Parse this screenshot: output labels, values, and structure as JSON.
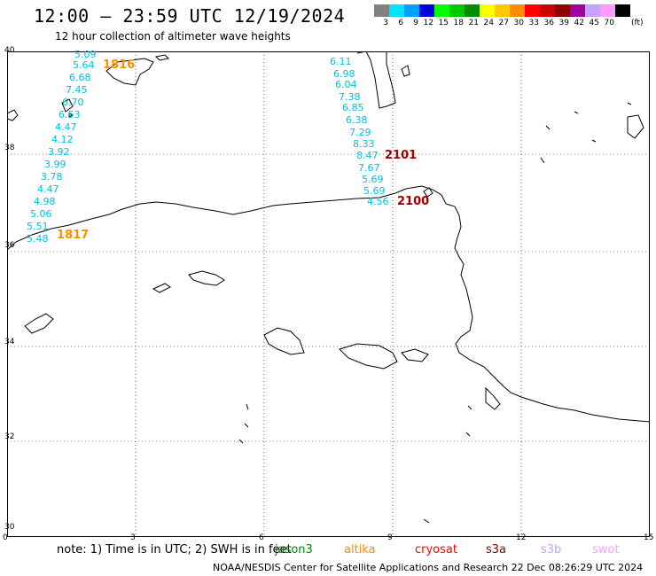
{
  "header": {
    "title": "12:00 – 23:59 UTC 12/19/2024",
    "subtitle": "12 hour collection of altimeter wave heights"
  },
  "color_scale": {
    "unit": "(ft)",
    "bins": [
      {
        "label": "3",
        "color": "#808080"
      },
      {
        "label": "6",
        "color": "#00e5ff"
      },
      {
        "label": "9",
        "color": "#00a0ff"
      },
      {
        "label": "12",
        "color": "#0000e0"
      },
      {
        "label": "15",
        "color": "#00ff00"
      },
      {
        "label": "18",
        "color": "#00c800"
      },
      {
        "label": "21",
        "color": "#008c00"
      },
      {
        "label": "24",
        "color": "#ffff00"
      },
      {
        "label": "27",
        "color": "#ffc800"
      },
      {
        "label": "30",
        "color": "#ff8c00"
      },
      {
        "label": "33",
        "color": "#ff0000"
      },
      {
        "label": "36",
        "color": "#c80000"
      },
      {
        "label": "39",
        "color": "#8c0000"
      },
      {
        "label": "42",
        "color": "#a000a0"
      },
      {
        "label": "45",
        "color": "#c8a0ff"
      },
      {
        "label": "70",
        "color": "#ff9cff"
      },
      {
        "label": "",
        "color": "#000000"
      }
    ]
  },
  "map": {
    "lat_labels": [
      "40",
      "38",
      "36",
      "34",
      "32",
      "30"
    ],
    "lon_labels": [
      "0",
      "3",
      "6",
      "9",
      "12",
      "15"
    ],
    "grid_color": "#000000",
    "coast_color": "#000000"
  },
  "tracks": [
    {
      "color": "#00c0e0",
      "observations": [
        "5.09",
        "5.64",
        "6.68",
        "7.45",
        "6.70",
        "6.53",
        "4.47",
        "4.12",
        "3.92",
        "3.99",
        "3.78",
        "4.47",
        "4.98",
        "5.06",
        "5.51",
        "5.48"
      ]
    },
    {
      "color": "#00c0e0",
      "observations": [
        "6.11",
        "6.98",
        "6.04",
        "7.38",
        "6.85",
        "6.38",
        "7.29",
        "8.33",
        "8.47",
        "7.67",
        "5.69",
        "5.69",
        "4.56"
      ]
    }
  ],
  "pass_labels": [
    {
      "text": "1816",
      "color": "#ff8c00"
    },
    {
      "text": "1817",
      "color": "#ff8c00"
    },
    {
      "text": "2101",
      "color": "#a00000"
    },
    {
      "text": "2100",
      "color": "#a00000"
    }
  ],
  "footer": {
    "note": "note: 1) Time is in UTC; 2) SWH is in feet",
    "satellites": [
      {
        "name": "jason3",
        "color": "#008c00"
      },
      {
        "name": "altika",
        "color": "#ff8c00"
      },
      {
        "name": "cryosat",
        "color": "#ff0000"
      },
      {
        "name": "s3a",
        "color": "#8c0000"
      },
      {
        "name": "s3b",
        "color": "#c8a0ff"
      },
      {
        "name": "swot",
        "color": "#ff9cff"
      }
    ],
    "credit": "NOAA/NESDIS Center for Satellite Applications and Research    22 Dec 08:26:29 UTC 2024"
  }
}
